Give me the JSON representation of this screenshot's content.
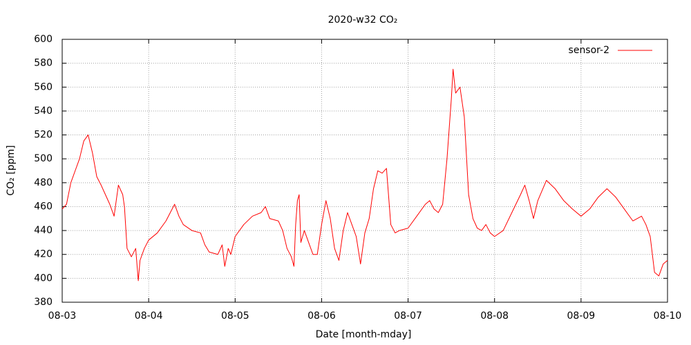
{
  "chart_data": {
    "type": "line",
    "title": "2020-w32 CO₂",
    "x_label": "Date [month-mday]",
    "y_label": "CO₂ [ppm]",
    "xlim": [
      3,
      10
    ],
    "xticks": [
      {
        "value": 3,
        "label": "08-03"
      },
      {
        "value": 4,
        "label": "08-04"
      },
      {
        "value": 5,
        "label": "08-05"
      },
      {
        "value": 6,
        "label": "08-06"
      },
      {
        "value": 7,
        "label": "08-07"
      },
      {
        "value": 8,
        "label": "08-08"
      },
      {
        "value": 9,
        "label": "08-09"
      },
      {
        "value": 10,
        "label": "08-10"
      }
    ],
    "ylim": [
      380,
      600
    ],
    "yticks": [
      380,
      400,
      420,
      440,
      460,
      480,
      500,
      520,
      540,
      560,
      580,
      600
    ],
    "grid": true,
    "legend": "upper right",
    "x": [
      3.0,
      3.05,
      3.1,
      3.15,
      3.2,
      3.25,
      3.3,
      3.35,
      3.4,
      3.45,
      3.5,
      3.55,
      3.6,
      3.65,
      3.7,
      3.72,
      3.75,
      3.8,
      3.85,
      3.88,
      3.9,
      3.95,
      4.0,
      4.1,
      4.2,
      4.3,
      4.35,
      4.4,
      4.5,
      4.6,
      4.65,
      4.7,
      4.8,
      4.85,
      4.88,
      4.92,
      4.95,
      5.0,
      5.1,
      5.2,
      5.3,
      5.35,
      5.4,
      5.5,
      5.55,
      5.6,
      5.65,
      5.68,
      5.7,
      5.72,
      5.74,
      5.76,
      5.8,
      5.85,
      5.9,
      5.95,
      6.0,
      6.05,
      6.1,
      6.15,
      6.2,
      6.25,
      6.3,
      6.35,
      6.4,
      6.45,
      6.5,
      6.55,
      6.6,
      6.65,
      6.7,
      6.75,
      6.8,
      6.85,
      6.9,
      7.0,
      7.1,
      7.2,
      7.25,
      7.3,
      7.35,
      7.4,
      7.45,
      7.5,
      7.52,
      7.55,
      7.6,
      7.65,
      7.7,
      7.75,
      7.8,
      7.85,
      7.9,
      7.95,
      8.0,
      8.1,
      8.2,
      8.3,
      8.35,
      8.4,
      8.45,
      8.5,
      8.6,
      8.7,
      8.8,
      8.9,
      9.0,
      9.1,
      9.2,
      9.3,
      9.4,
      9.5,
      9.6,
      9.7,
      9.75,
      9.8,
      9.85,
      9.9,
      9.95,
      10.0
    ],
    "series": [
      {
        "name": "sensor-2",
        "color": "#ff0000",
        "values": [
          458,
          462,
          480,
          490,
          500,
          515,
          520,
          505,
          485,
          478,
          470,
          462,
          452,
          478,
          470,
          460,
          425,
          418,
          425,
          398,
          415,
          425,
          432,
          438,
          448,
          462,
          452,
          445,
          440,
          438,
          428,
          422,
          420,
          428,
          410,
          425,
          420,
          435,
          445,
          452,
          455,
          460,
          450,
          448,
          440,
          425,
          418,
          410,
          445,
          465,
          470,
          430,
          440,
          430,
          420,
          420,
          445,
          465,
          450,
          425,
          415,
          440,
          455,
          445,
          435,
          412,
          438,
          450,
          475,
          490,
          488,
          492,
          445,
          438,
          440,
          442,
          452,
          462,
          465,
          458,
          455,
          462,
          500,
          550,
          575,
          555,
          560,
          535,
          470,
          450,
          442,
          440,
          445,
          438,
          435,
          440,
          455,
          470,
          478,
          465,
          450,
          465,
          482,
          475,
          465,
          458,
          452,
          458,
          468,
          475,
          468,
          458,
          448,
          452,
          445,
          435,
          405,
          402,
          412,
          415
        ]
      }
    ]
  }
}
